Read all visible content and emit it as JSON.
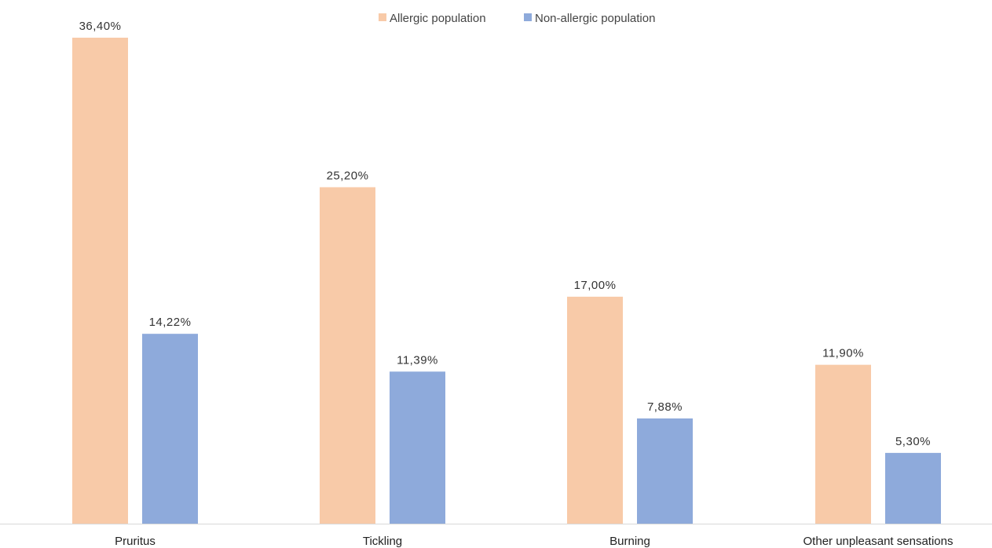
{
  "chart_data": {
    "type": "bar",
    "categories": [
      "Pruritus",
      "Tickling",
      "Burning",
      "Other unpleasant sensations"
    ],
    "series": [
      {
        "name": "Allergic population",
        "color": "#f8caa8",
        "values": [
          36.4,
          25.2,
          17.0,
          11.9
        ],
        "labels": [
          "36,40%",
          "25,20%",
          "17,00%",
          "11,90%"
        ]
      },
      {
        "name": "Non-allergic population",
        "color": "#8eaadb",
        "values": [
          14.22,
          11.39,
          7.88,
          5.3
        ],
        "labels": [
          "14,22%",
          "11,39%",
          "7,88%",
          "5,30%"
        ]
      }
    ],
    "ylim": [
      0,
      36.4
    ],
    "legend": "top-center",
    "grid": false,
    "axis_color": "#d9d9d9"
  }
}
